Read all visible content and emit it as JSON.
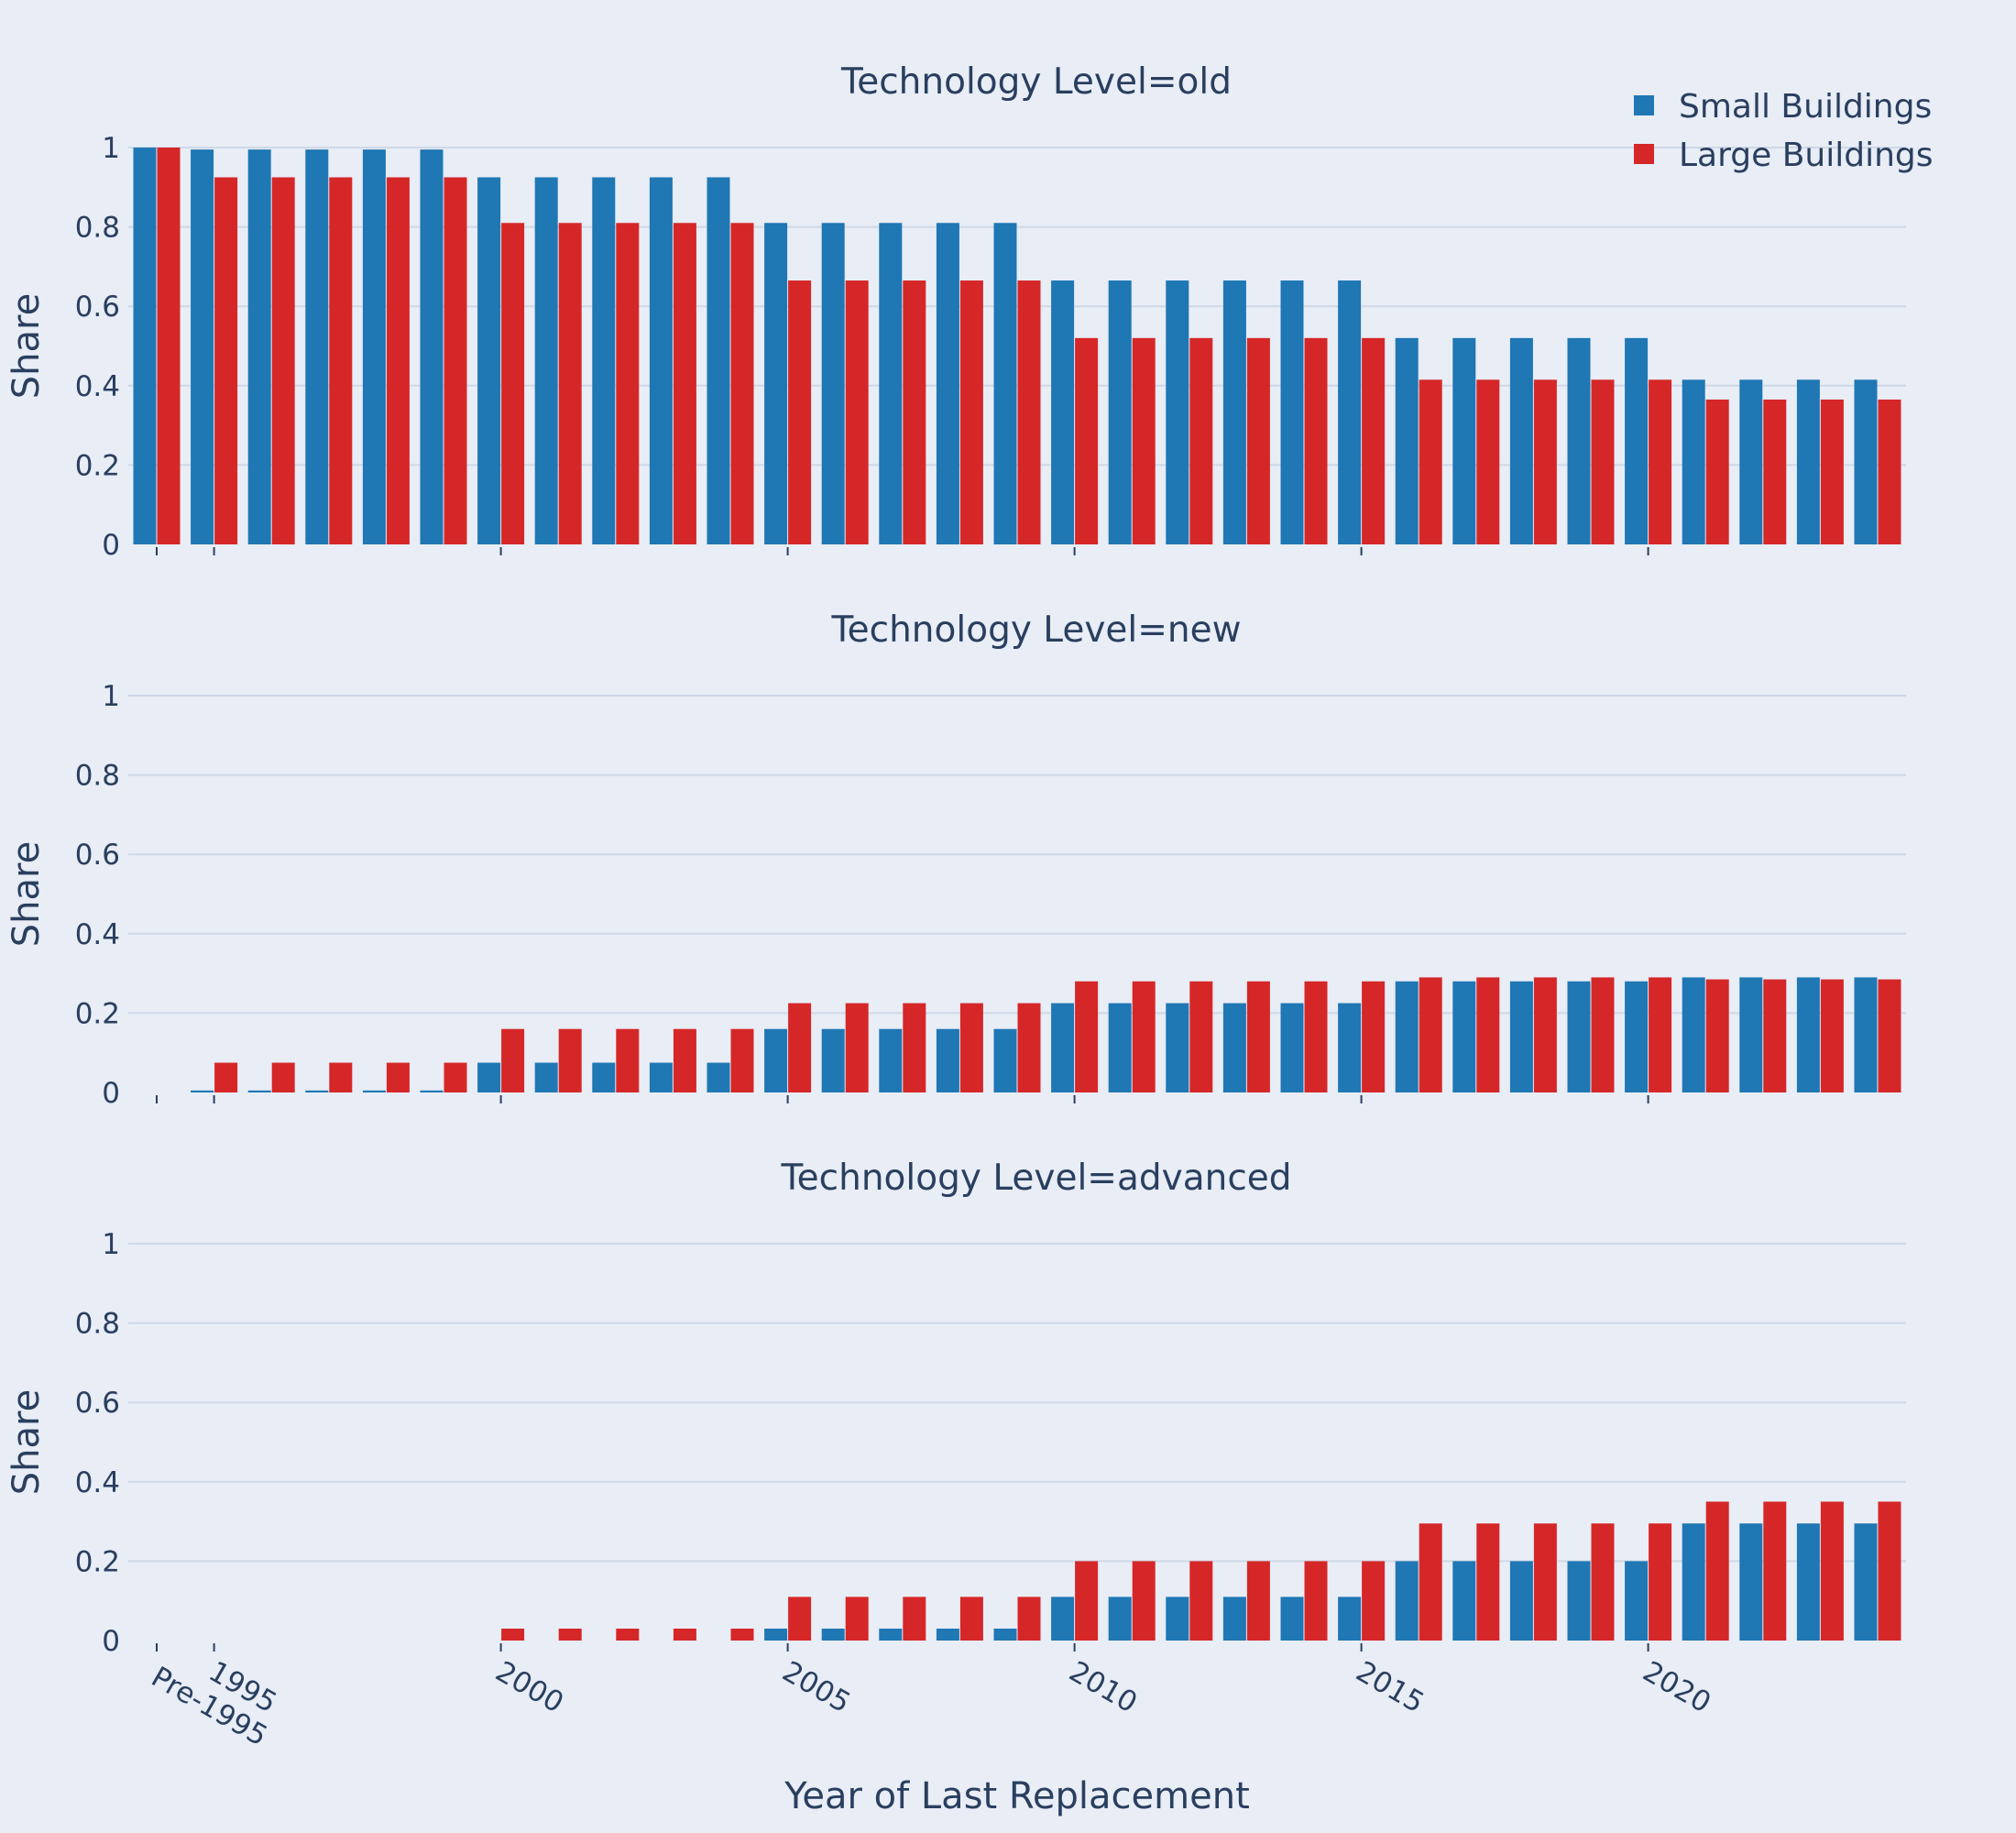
{
  "chart_data": {
    "type": "bar",
    "xlabel": "Year of Last Replacement",
    "ylabel": "Share",
    "ylim": [
      0,
      1
    ],
    "yticks": [
      0,
      0.2,
      0.4,
      0.6,
      0.8,
      1
    ],
    "ytick_labels": [
      "0",
      "0.2",
      "0.4",
      "0.6",
      "0.8",
      "1"
    ],
    "grid": true,
    "legend_position": "top-right",
    "colors": {
      "Small Buildings": "#1f77b4",
      "Large Buildings": "#d62728",
      "background": "#e8edf6",
      "text": "#2a3f5f"
    },
    "categories": [
      "Pre-1995",
      "1995",
      "1996",
      "1997",
      "1998",
      "1999",
      "2000",
      "2001",
      "2002",
      "2003",
      "2004",
      "2005",
      "2006",
      "2007",
      "2008",
      "2009",
      "2010",
      "2011",
      "2012",
      "2013",
      "2014",
      "2015",
      "2016",
      "2017",
      "2018",
      "2019",
      "2020",
      "2021",
      "2022",
      "2023",
      "2024"
    ],
    "x_tick_labels": [
      {
        "category": "Pre-1995",
        "label": "Pre-1995"
      },
      {
        "category": "1995",
        "label": "1995"
      },
      {
        "category": "2000",
        "label": "2000"
      },
      {
        "category": "2005",
        "label": "2005"
      },
      {
        "category": "2010",
        "label": "2010"
      },
      {
        "category": "2015",
        "label": "2015"
      },
      {
        "category": "2020",
        "label": "2020"
      }
    ],
    "legend": [
      "Small Buildings",
      "Large Buildings"
    ],
    "panels": [
      {
        "title": "Technology Level=old",
        "series": [
          {
            "name": "Small Buildings",
            "values": [
              1,
              0.995,
              0.995,
              0.995,
              0.995,
              0.995,
              0.925,
              0.925,
              0.925,
              0.925,
              0.925,
              0.81,
              0.81,
              0.81,
              0.81,
              0.81,
              0.665,
              0.665,
              0.665,
              0.665,
              0.665,
              0.665,
              0.52,
              0.52,
              0.52,
              0.52,
              0.52,
              0.415,
              0.415,
              0.415,
              0.415
            ]
          },
          {
            "name": "Large Buildings",
            "values": [
              1,
              0.925,
              0.925,
              0.925,
              0.925,
              0.925,
              0.81,
              0.81,
              0.81,
              0.81,
              0.81,
              0.665,
              0.665,
              0.665,
              0.665,
              0.665,
              0.52,
              0.52,
              0.52,
              0.52,
              0.52,
              0.52,
              0.415,
              0.415,
              0.415,
              0.415,
              0.415,
              0.365,
              0.365,
              0.365,
              0.365
            ]
          }
        ]
      },
      {
        "title": "Technology Level=new",
        "series": [
          {
            "name": "Small Buildings",
            "values": [
              0,
              0.005,
              0.005,
              0.005,
              0.005,
              0.005,
              0.075,
              0.075,
              0.075,
              0.075,
              0.075,
              0.16,
              0.16,
              0.16,
              0.16,
              0.16,
              0.225,
              0.225,
              0.225,
              0.225,
              0.225,
              0.225,
              0.28,
              0.28,
              0.28,
              0.28,
              0.28,
              0.29,
              0.29,
              0.29,
              0.29
            ]
          },
          {
            "name": "Large Buildings",
            "values": [
              0,
              0.075,
              0.075,
              0.075,
              0.075,
              0.075,
              0.16,
              0.16,
              0.16,
              0.16,
              0.16,
              0.225,
              0.225,
              0.225,
              0.225,
              0.225,
              0.28,
              0.28,
              0.28,
              0.28,
              0.28,
              0.28,
              0.29,
              0.29,
              0.29,
              0.29,
              0.29,
              0.285,
              0.285,
              0.285,
              0.285
            ]
          }
        ]
      },
      {
        "title": "Technology Level=advanced",
        "series": [
          {
            "name": "Small Buildings",
            "values": [
              0,
              0,
              0,
              0,
              0,
              0,
              0,
              0,
              0,
              0,
              0,
              0.03,
              0.03,
              0.03,
              0.03,
              0.03,
              0.11,
              0.11,
              0.11,
              0.11,
              0.11,
              0.11,
              0.2,
              0.2,
              0.2,
              0.2,
              0.2,
              0.295,
              0.295,
              0.295,
              0.295
            ]
          },
          {
            "name": "Large Buildings",
            "values": [
              0,
              0,
              0,
              0,
              0,
              0,
              0.03,
              0.03,
              0.03,
              0.03,
              0.03,
              0.11,
              0.11,
              0.11,
              0.11,
              0.11,
              0.2,
              0.2,
              0.2,
              0.2,
              0.2,
              0.2,
              0.295,
              0.295,
              0.295,
              0.295,
              0.295,
              0.35,
              0.35,
              0.35,
              0.35
            ]
          }
        ]
      }
    ]
  }
}
